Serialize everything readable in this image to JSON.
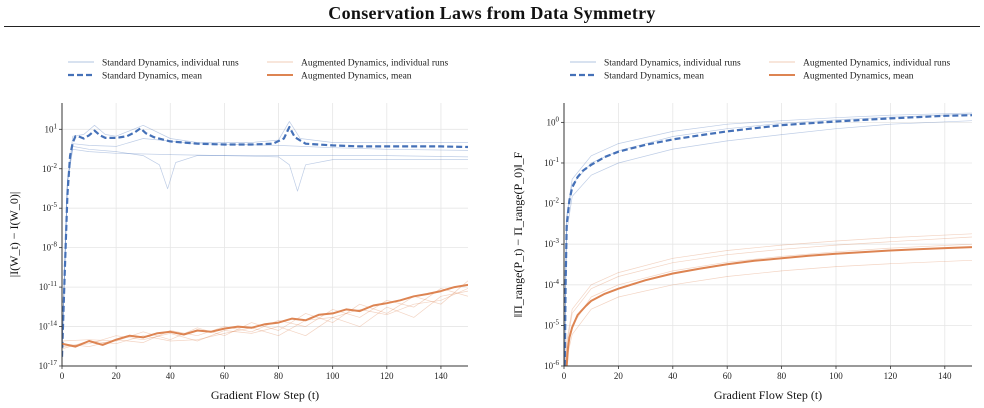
{
  "figure": {
    "title": "Conservation Laws from Data Symmetry",
    "colors": {
      "standard": "#4571b8",
      "augmented": "#dd8452",
      "grid": "#e6e6e6",
      "axis": "#333333"
    }
  },
  "chart_data": [
    {
      "type": "line",
      "title": "",
      "xlabel": "Gradient Flow Step (t)",
      "ylabel": "|I(W_t) − I(W_0)|",
      "y_scale": "log",
      "xlim": [
        0,
        150
      ],
      "ylim": [
        1e-17,
        1000
      ],
      "x_ticks": [
        0,
        20,
        40,
        60,
        80,
        100,
        120,
        140
      ],
      "y_ticks": [
        {
          "value": 1e-17,
          "base": "10",
          "exp": "-17"
        },
        {
          "value": 1e-14,
          "base": "10",
          "exp": "-14"
        },
        {
          "value": 1e-11,
          "base": "10",
          "exp": "-11"
        },
        {
          "value": 1e-08,
          "base": "10",
          "exp": "-8"
        },
        {
          "value": 1e-05,
          "base": "10",
          "exp": "-5"
        },
        {
          "value": 0.01,
          "base": "10",
          "exp": "-2"
        },
        {
          "value": 10,
          "base": "10",
          "exp": "1"
        }
      ],
      "grid": true,
      "legend": {
        "placement": "top",
        "entries": [
          "Standard Dynamics, individual runs",
          "Augmented Dynamics, individual runs",
          "Standard Dynamics, mean",
          "Augmented Dynamics, mean"
        ]
      },
      "series": [
        {
          "name": "Standard Dynamics, mean",
          "color": "#4571b8",
          "style": "dashed-thick",
          "x": [
            0,
            1,
            2,
            3,
            4,
            5,
            6,
            8,
            10,
            12,
            14,
            16,
            20,
            24,
            27,
            29,
            31,
            34,
            40,
            50,
            60,
            70,
            78,
            82,
            84,
            86,
            90,
            100,
            110,
            120,
            130,
            140,
            150
          ],
          "y": [
            5e-17,
            1e-10,
            0.0001,
            0.1,
            1,
            3,
            3,
            2,
            3.5,
            8,
            3.5,
            2.2,
            2.2,
            3,
            6,
            12,
            5,
            2.5,
            1.2,
            0.8,
            0.7,
            0.7,
            0.8,
            2,
            15,
            2.5,
            0.8,
            0.6,
            0.5,
            0.5,
            0.5,
            0.5,
            0.45
          ]
        },
        {
          "name": "Standard Dynamics, individual run 1",
          "color": "#4571b8",
          "style": "thin",
          "x": [
            0,
            2,
            4,
            8,
            12,
            16,
            20,
            30,
            40,
            50,
            60,
            70,
            80,
            84,
            88,
            100,
            120,
            150
          ],
          "y": [
            1e-16,
            0.001,
            3,
            4,
            20,
            4,
            3,
            20,
            2,
            1,
            1,
            1,
            1.5,
            40,
            2,
            1,
            1,
            1
          ]
        },
        {
          "name": "Standard Dynamics, individual run 2",
          "color": "#4571b8",
          "style": "thin",
          "x": [
            0,
            2,
            4,
            10,
            20,
            30,
            36,
            39,
            42,
            50,
            60,
            80,
            100,
            120,
            150
          ],
          "y": [
            1e-16,
            0.001,
            0.5,
            0.3,
            0.2,
            0.1,
            0.02,
            0.0003,
            0.03,
            0.1,
            0.1,
            0.1,
            0.1,
            0.1,
            0.08
          ]
        },
        {
          "name": "Standard Dynamics, individual run 3",
          "color": "#4571b8",
          "style": "thin",
          "x": [
            0,
            2,
            4,
            10,
            20,
            40,
            60,
            80,
            84,
            87,
            90,
            100,
            120,
            150
          ],
          "y": [
            1e-16,
            0.001,
            0.3,
            0.2,
            0.15,
            0.12,
            0.1,
            0.08,
            0.02,
            0.0002,
            0.02,
            0.05,
            0.05,
            0.05
          ]
        },
        {
          "name": "Standard Dynamics, individual run 4",
          "color": "#4571b8",
          "style": "thin",
          "x": [
            0,
            2,
            4,
            10,
            20,
            30,
            50,
            80,
            100,
            120,
            150
          ],
          "y": [
            1e-16,
            0.001,
            0.8,
            0.6,
            0.5,
            2,
            0.8,
            0.6,
            0.4,
            0.3,
            0.25
          ]
        },
        {
          "name": "Augmented Dynamics, mean",
          "color": "#dd8452",
          "style": "solid-thick",
          "x": [
            0,
            5,
            10,
            15,
            20,
            25,
            30,
            35,
            40,
            45,
            50,
            55,
            60,
            65,
            70,
            75,
            80,
            85,
            90,
            95,
            100,
            105,
            110,
            115,
            120,
            125,
            130,
            135,
            140,
            145,
            150
          ],
          "y": [
            5e-16,
            3e-16,
            8e-16,
            4e-16,
            1e-15,
            2e-15,
            1.5e-15,
            3e-15,
            4e-15,
            2.5e-15,
            5e-15,
            4e-15,
            7e-15,
            1e-14,
            8e-15,
            1.5e-14,
            2e-14,
            4e-14,
            3e-14,
            8e-14,
            1e-13,
            2e-13,
            1.5e-13,
            4e-13,
            6e-13,
            1e-12,
            2e-12,
            3e-12,
            5e-12,
            1e-11,
            1.5e-11
          ]
        },
        {
          "name": "Augmented Dynamics, individual run 1",
          "color": "#dd8452",
          "style": "thin",
          "x": [
            0,
            10,
            20,
            30,
            40,
            50,
            60,
            70,
            80,
            90,
            100,
            110,
            120,
            130,
            140,
            150
          ],
          "y": [
            3e-16,
            5e-16,
            2e-15,
            1e-15,
            3e-15,
            8e-16,
            5e-15,
            3e-15,
            1e-14,
            2e-15,
            5e-14,
            1e-14,
            3e-13,
            5e-14,
            2e-12,
            5e-12
          ]
        },
        {
          "name": "Augmented Dynamics, individual run 2",
          "color": "#dd8452",
          "style": "thin",
          "x": [
            0,
            10,
            20,
            30,
            40,
            50,
            60,
            70,
            80,
            90,
            100,
            110,
            120,
            130,
            140,
            150
          ],
          "y": [
            8e-16,
            1e-15,
            8e-16,
            4e-15,
            1e-15,
            8e-15,
            2e-15,
            2e-14,
            5e-15,
            1e-13,
            2e-14,
            5e-13,
            1e-13,
            2e-12,
            5e-13,
            3e-11
          ]
        },
        {
          "name": "Augmented Dynamics, individual run 3",
          "color": "#dd8452",
          "style": "thin",
          "x": [
            0,
            10,
            20,
            30,
            40,
            50,
            60,
            70,
            80,
            90,
            100,
            110,
            120,
            130,
            140,
            150
          ],
          "y": [
            5e-16,
            3e-16,
            1e-15,
            6e-16,
            5e-15,
            2e-15,
            1e-14,
            4e-15,
            3e-14,
            1e-14,
            2e-13,
            5e-14,
            1e-12,
            3e-13,
            8e-12,
            2e-12
          ]
        },
        {
          "name": "Augmented Dynamics, individual run 4",
          "color": "#dd8452",
          "style": "thin",
          "x": [
            0,
            10,
            20,
            30,
            40,
            50,
            60,
            70,
            80,
            90,
            100,
            110,
            120,
            130,
            140,
            150
          ],
          "y": [
            2e-16,
            8e-16,
            5e-16,
            2e-15,
            8e-16,
            1e-15,
            3e-15,
            8e-15,
            2e-15,
            3e-14,
            5e-14,
            2e-13,
            8e-14,
            5e-13,
            1e-12,
            8e-12
          ]
        }
      ]
    },
    {
      "type": "line",
      "title": "",
      "xlabel": "Gradient Flow Step (t)",
      "ylabel": "‖Π_range(P_t) − Π_range(P_0)‖_F",
      "y_scale": "log",
      "xlim": [
        0,
        150
      ],
      "ylim": [
        1e-06,
        3
      ],
      "x_ticks": [
        0,
        20,
        40,
        60,
        80,
        100,
        120,
        140
      ],
      "y_ticks": [
        {
          "value": 1e-06,
          "base": "10",
          "exp": "-6"
        },
        {
          "value": 1e-05,
          "base": "10",
          "exp": "-5"
        },
        {
          "value": 0.0001,
          "base": "10",
          "exp": "-4"
        },
        {
          "value": 0.001,
          "base": "10",
          "exp": "-3"
        },
        {
          "value": 0.01,
          "base": "10",
          "exp": "-2"
        },
        {
          "value": 0.1,
          "base": "10",
          "exp": "-1"
        },
        {
          "value": 1,
          "base": "10",
          "exp": "0"
        }
      ],
      "grid": true,
      "legend": {
        "placement": "top",
        "entries": [
          "Standard Dynamics, individual runs",
          "Augmented Dynamics, individual runs",
          "Standard Dynamics, mean",
          "Augmented Dynamics, mean"
        ]
      },
      "series": [
        {
          "name": "Standard Dynamics, mean",
          "color": "#4571b8",
          "style": "dashed-thick",
          "x": [
            0.3,
            0.6,
            1,
            2,
            3,
            5,
            7,
            10,
            15,
            20,
            30,
            40,
            50,
            60,
            70,
            80,
            90,
            100,
            110,
            120,
            130,
            140,
            150
          ],
          "y": [
            1e-06,
            0.0001,
            0.003,
            0.012,
            0.025,
            0.045,
            0.065,
            0.09,
            0.14,
            0.19,
            0.28,
            0.38,
            0.48,
            0.6,
            0.72,
            0.85,
            0.95,
            1.05,
            1.15,
            1.25,
            1.35,
            1.45,
            1.5
          ]
        },
        {
          "name": "Standard Dynamics, individual run 1",
          "color": "#4571b8",
          "style": "thin",
          "x": [
            0.3,
            0.6,
            1,
            3,
            10,
            20,
            40,
            60,
            80,
            100,
            120,
            150
          ],
          "y": [
            1e-06,
            0.0002,
            0.005,
            0.04,
            0.15,
            0.3,
            0.6,
            0.9,
            1.1,
            1.3,
            1.5,
            1.7
          ]
        },
        {
          "name": "Standard Dynamics, individual run 2",
          "color": "#4571b8",
          "style": "thin",
          "x": [
            0.3,
            0.6,
            1,
            3,
            10,
            20,
            40,
            60,
            80,
            100,
            120,
            150
          ],
          "y": [
            1e-06,
            5e-05,
            0.002,
            0.015,
            0.05,
            0.1,
            0.22,
            0.35,
            0.5,
            0.7,
            0.9,
            1.1
          ]
        },
        {
          "name": "Standard Dynamics, individual run 3",
          "color": "#4571b8",
          "style": "thin",
          "x": [
            0.3,
            0.6,
            1,
            3,
            10,
            20,
            40,
            60,
            80,
            100,
            120,
            150
          ],
          "y": [
            1e-06,
            0.0001,
            0.004,
            0.03,
            0.1,
            0.2,
            0.45,
            0.7,
            0.95,
            1.15,
            1.35,
            1.6
          ]
        },
        {
          "name": "Augmented Dynamics, mean",
          "color": "#dd8452",
          "style": "solid-thick",
          "x": [
            1,
            1.5,
            2,
            3,
            5,
            8,
            10,
            15,
            20,
            30,
            40,
            50,
            60,
            70,
            80,
            90,
            100,
            110,
            120,
            130,
            140,
            150
          ],
          "y": [
            1e-06,
            3e-06,
            5e-06,
            9e-06,
            1.8e-05,
            3e-05,
            4e-05,
            6e-05,
            8e-05,
            0.00013,
            0.00019,
            0.00025,
            0.00032,
            0.00039,
            0.00045,
            0.00052,
            0.00058,
            0.00064,
            0.0007,
            0.00075,
            0.0008,
            0.00085
          ]
        },
        {
          "name": "Augmented Dynamics, individual run 1",
          "color": "#dd8452",
          "style": "thin",
          "x": [
            0.6,
            1,
            3,
            10,
            20,
            40,
            60,
            80,
            100,
            120,
            150
          ],
          "y": [
            1e-06,
            3e-06,
            2e-05,
            8e-05,
            0.00016,
            0.00035,
            0.00055,
            0.00075,
            0.00095,
            0.00115,
            0.0015
          ]
        },
        {
          "name": "Augmented Dynamics, individual run 2",
          "color": "#dd8452",
          "style": "thin",
          "x": [
            0.6,
            1,
            3,
            10,
            20,
            40,
            60,
            80,
            100,
            120,
            150
          ],
          "y": [
            1e-06,
            2e-06,
            1e-05,
            5e-05,
            0.0001,
            0.00022,
            0.00036,
            0.0005,
            0.00065,
            0.0008,
            0.001
          ]
        },
        {
          "name": "Augmented Dynamics, individual run 3",
          "color": "#dd8452",
          "style": "thin",
          "x": [
            0.6,
            1,
            3,
            10,
            20,
            40,
            60,
            80,
            100,
            120,
            150
          ],
          "y": [
            1e-06,
            1.5e-06,
            6e-06,
            2.5e-05,
            5e-05,
            0.0001,
            0.00016,
            0.00022,
            0.00028,
            0.00033,
            0.0004
          ]
        },
        {
          "name": "Augmented Dynamics, individual run 4",
          "color": "#dd8452",
          "style": "thin",
          "x": [
            0.6,
            1,
            3,
            10,
            20,
            40,
            60,
            80,
            100,
            120,
            150
          ],
          "y": [
            1e-06,
            4e-06,
            2.5e-05,
            0.0001,
            0.0002,
            0.00045,
            0.0007,
            0.00095,
            0.0012,
            0.00145,
            0.0018
          ]
        }
      ]
    }
  ]
}
